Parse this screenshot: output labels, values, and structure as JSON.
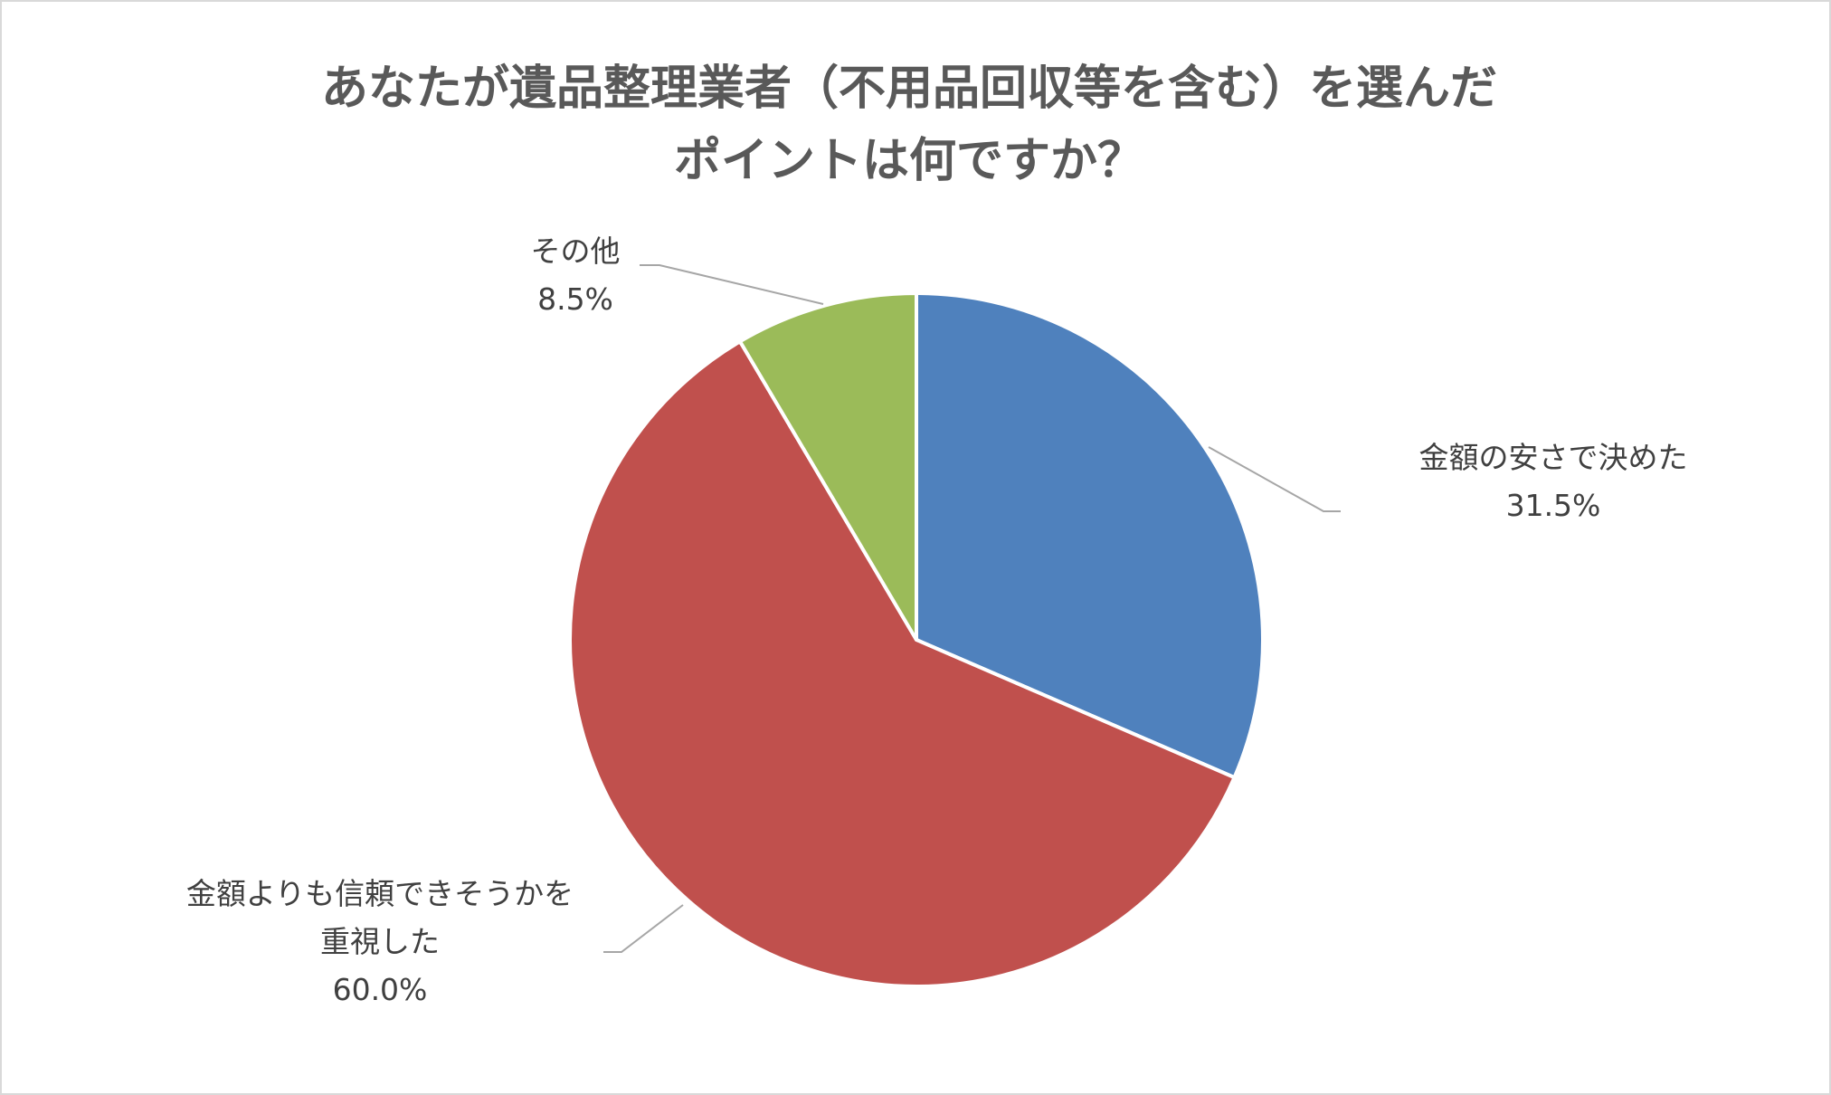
{
  "chart_data": {
    "type": "pie",
    "title": [
      "あなたが遺品整理業者（不用品回収等を含む）を選んだ",
      "ポイントは何ですか？"
    ],
    "categories": [
      "金額の安さで決めた",
      "金額よりも信頼できそうかを重視した",
      "その他"
    ],
    "values": [
      31.5,
      60.0,
      8.5
    ],
    "value_labels": [
      "31.5%",
      "60.0%",
      "8.5%"
    ],
    "colors": [
      "#4f81bd",
      "#c0504d",
      "#9bbb59"
    ]
  }
}
